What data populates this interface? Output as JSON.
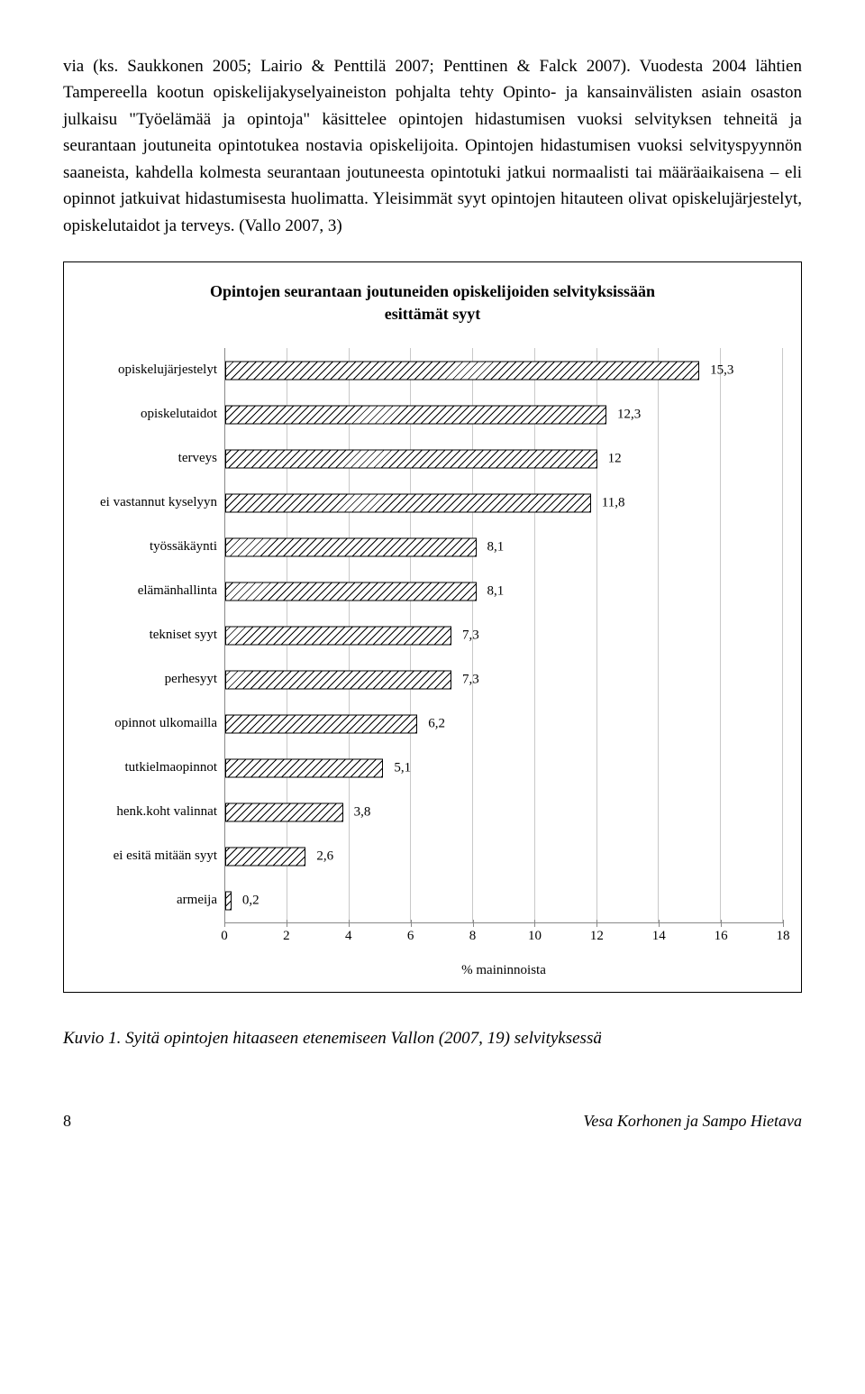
{
  "bodyText": "via (ks. Saukkonen 2005; Lairio & Penttilä 2007; Penttinen & Falck 2007). Vuodesta 2004 lähtien Tampereella kootun opiskelijakyselyaineiston pohjalta tehty Opinto- ja kansainvälisten asiain osaston julkaisu \"Työelämää ja opintoja\" käsittelee opintojen hidastumisen vuoksi selvityksen tehneitä ja seurantaan joutuneita opintotukea nostavia opiskelijoita. Opintojen hidastumisen vuoksi selvityspyynnön saaneista, kahdella kolmesta seurantaan joutuneesta opintotuki jatkui normaalisti tai määräaikaisena – eli opinnot jatkuivat hidastumisesta huolimatta. Yleisimmät syyt opintojen hitauteen olivat opiskelujärjestelyt, opiskelutaidot ja terveys. (Vallo 2007, 3)",
  "chart": {
    "title_line1": "Opintojen seurantaan joutuneiden opiskelijoiden selvityksissään",
    "title_line2": "esittämät syyt",
    "xlabel": "% maininnoista",
    "xmax": 18,
    "xtick_step": 2,
    "xticks": [
      0,
      2,
      4,
      6,
      8,
      10,
      12,
      14,
      16,
      18
    ],
    "bar_border": "#000000",
    "bar_hatch_color": "#000000",
    "grid_color": "#c8c8c8",
    "background": "#ffffff",
    "label_fontsize": 15,
    "title_fontsize": 18,
    "categories": [
      {
        "label": "opiskelujärjestelyt",
        "value": 15.3,
        "display": "15,3"
      },
      {
        "label": "opiskelutaidot",
        "value": 12.3,
        "display": "12,3"
      },
      {
        "label": "terveys",
        "value": 12.0,
        "display": "12"
      },
      {
        "label": "ei vastannut kyselyyn",
        "value": 11.8,
        "display": "11,8"
      },
      {
        "label": "työssäkäynti",
        "value": 8.1,
        "display": "8,1"
      },
      {
        "label": "elämänhallinta",
        "value": 8.1,
        "display": "8,1"
      },
      {
        "label": "tekniset syyt",
        "value": 7.3,
        "display": "7,3"
      },
      {
        "label": "perhesyyt",
        "value": 7.3,
        "display": "7,3"
      },
      {
        "label": "opinnot ulkomailla",
        "value": 6.2,
        "display": "6,2"
      },
      {
        "label": "tutkielmaopinnot",
        "value": 5.1,
        "display": "5,1"
      },
      {
        "label": "henk.koht valinnat",
        "value": 3.8,
        "display": "3,8"
      },
      {
        "label": "ei esitä mitään syyt",
        "value": 2.6,
        "display": "2,6"
      },
      {
        "label": "armeija",
        "value": 0.2,
        "display": "0,2"
      }
    ]
  },
  "caption": "Kuvio 1. Syitä opintojen hitaaseen etenemiseen Vallon (2007, 19) selvityksessä",
  "footer": {
    "page": "8",
    "authors": "Vesa Korhonen ja Sampo Hietava"
  }
}
